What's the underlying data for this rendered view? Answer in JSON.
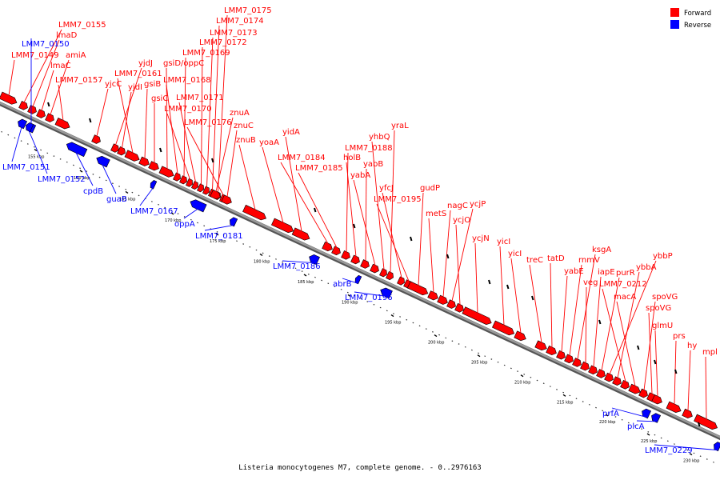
{
  "caption": "Listeria monocytogenes M7, complete genome. - 0..2976163",
  "legend": [
    {
      "label": "Forward",
      "color": "#ff0000"
    },
    {
      "label": "Reverse",
      "color": "#0000ff"
    }
  ],
  "colors": {
    "forward": "#ff0000",
    "reverse": "#0000ff",
    "backbone": "#9a9a9a"
  },
  "axis": {
    "unit": "kbp",
    "ticks": [
      155,
      160,
      165,
      170,
      175,
      180,
      185,
      190,
      195,
      200,
      205,
      210,
      215,
      220,
      225,
      230
    ]
  },
  "genes": [
    {
      "name": "LMM7_0149",
      "strand": "forward"
    },
    {
      "name": "LMM7_0150",
      "strand": "reverse"
    },
    {
      "name": "LMM7_0155",
      "strand": "forward"
    },
    {
      "name": "lmaD",
      "strand": "forward"
    },
    {
      "name": "lmaC",
      "strand": "forward"
    },
    {
      "name": "amiA",
      "strand": "forward"
    },
    {
      "name": "LMM7_0157",
      "strand": "forward"
    },
    {
      "name": "yjcC",
      "strand": "forward"
    },
    {
      "name": "yjdJ",
      "strand": "forward"
    },
    {
      "name": "yjdI",
      "strand": "forward"
    },
    {
      "name": "LMM7_0161",
      "strand": "forward"
    },
    {
      "name": "gsiB",
      "strand": "forward"
    },
    {
      "name": "gsiC",
      "strand": "forward"
    },
    {
      "name": "gsiD/oppC",
      "strand": "forward"
    },
    {
      "name": "LMM7_0168",
      "strand": "forward"
    },
    {
      "name": "LMM7_0169",
      "strand": "forward"
    },
    {
      "name": "LMM7_0170",
      "strand": "forward"
    },
    {
      "name": "LMM7_0171",
      "strand": "forward"
    },
    {
      "name": "LMM7_0172",
      "strand": "forward"
    },
    {
      "name": "LMM7_0173",
      "strand": "forward"
    },
    {
      "name": "LMM7_0174",
      "strand": "forward"
    },
    {
      "name": "LMM7_0175",
      "strand": "forward"
    },
    {
      "name": "LMM7_0176",
      "strand": "forward"
    },
    {
      "name": "znuA",
      "strand": "forward"
    },
    {
      "name": "znuC",
      "strand": "forward"
    },
    {
      "name": "znuB",
      "strand": "forward"
    },
    {
      "name": "yoaA",
      "strand": "forward"
    },
    {
      "name": "yidA",
      "strand": "forward"
    },
    {
      "name": "LMM7_0184",
      "strand": "forward"
    },
    {
      "name": "LMM7_0185",
      "strand": "forward"
    },
    {
      "name": "LMM7_0188",
      "strand": "forward"
    },
    {
      "name": "holB",
      "strand": "forward"
    },
    {
      "name": "yabB",
      "strand": "forward"
    },
    {
      "name": "yabA",
      "strand": "forward"
    },
    {
      "name": "yhbQ",
      "strand": "forward"
    },
    {
      "name": "yraL",
      "strand": "forward"
    },
    {
      "name": "yfcJ",
      "strand": "forward"
    },
    {
      "name": "LMM7_0195",
      "strand": "forward"
    },
    {
      "name": "gudP",
      "strand": "forward"
    },
    {
      "name": "metS",
      "strand": "forward"
    },
    {
      "name": "nagC",
      "strand": "forward"
    },
    {
      "name": "ycjP",
      "strand": "forward"
    },
    {
      "name": "ycjO",
      "strand": "forward"
    },
    {
      "name": "ycjN",
      "strand": "forward"
    },
    {
      "name": "yicI",
      "strand": "forward"
    },
    {
      "name": "yicI",
      "strand": "forward"
    },
    {
      "name": "treC",
      "strand": "forward"
    },
    {
      "name": "tatD",
      "strand": "forward"
    },
    {
      "name": "yabE",
      "strand": "forward"
    },
    {
      "name": "rnmV",
      "strand": "forward"
    },
    {
      "name": "ksgA",
      "strand": "forward"
    },
    {
      "name": "veg",
      "strand": "forward"
    },
    {
      "name": "iapE",
      "strand": "forward"
    },
    {
      "name": "purR",
      "strand": "forward"
    },
    {
      "name": "ybbP",
      "strand": "forward"
    },
    {
      "name": "ybbA",
      "strand": "forward"
    },
    {
      "name": "LMM7_0212",
      "strand": "forward"
    },
    {
      "name": "macA",
      "strand": "forward"
    },
    {
      "name": "spoVG",
      "strand": "forward"
    },
    {
      "name": "spoVG",
      "strand": "forward"
    },
    {
      "name": "glmU",
      "strand": "forward"
    },
    {
      "name": "prs",
      "strand": "forward"
    },
    {
      "name": "hy",
      "strand": "forward"
    },
    {
      "name": "mpl",
      "strand": "forward"
    },
    {
      "name": "LMM7_0151",
      "strand": "reverse"
    },
    {
      "name": "LMM7_0152",
      "strand": "reverse"
    },
    {
      "name": "cpdB",
      "strand": "reverse"
    },
    {
      "name": "guaB",
      "strand": "reverse"
    },
    {
      "name": "LMM7_0167",
      "strand": "reverse"
    },
    {
      "name": "oppA",
      "strand": "reverse"
    },
    {
      "name": "LMM7_0181",
      "strand": "reverse"
    },
    {
      "name": "LMM7_0186",
      "strand": "reverse"
    },
    {
      "name": "abrB",
      "strand": "reverse"
    },
    {
      "name": "LMM7_0196",
      "strand": "reverse"
    },
    {
      "name": "prfA",
      "strand": "reverse"
    },
    {
      "name": "plcA",
      "strand": "reverse"
    },
    {
      "name": "LMM7_0229",
      "strand": "reverse"
    }
  ]
}
